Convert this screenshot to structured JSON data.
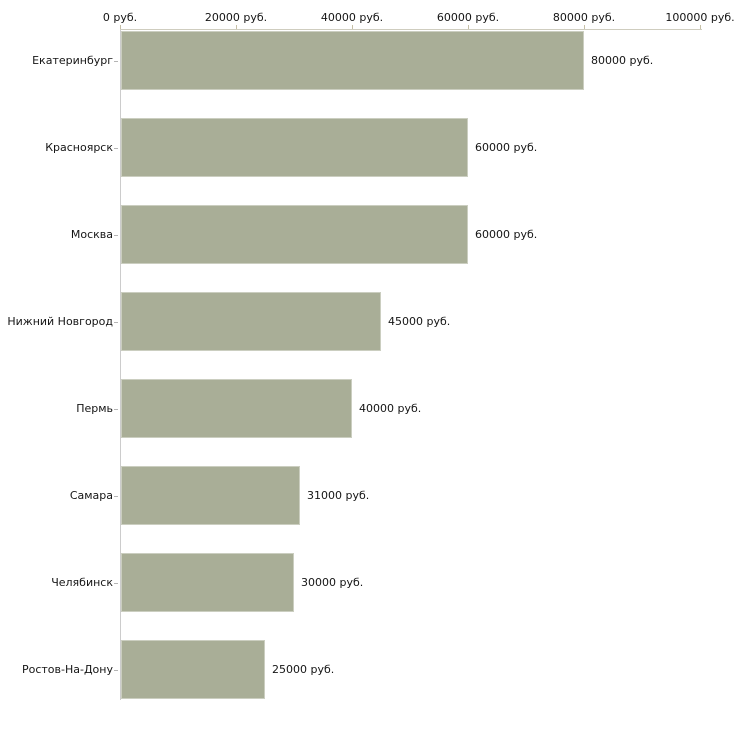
{
  "chart_data": {
    "type": "bar",
    "orientation": "horizontal",
    "title": "",
    "xlabel": "",
    "ylabel": "",
    "legend": "none",
    "grid": "off",
    "categories": [
      "Екатеринбург",
      "Красноярск",
      "Москва",
      "Нижний Новгород",
      "Пермь",
      "Самара",
      "Челябинск",
      "Ростов-На-Дону"
    ],
    "values": [
      80000,
      60000,
      60000,
      45000,
      40000,
      31000,
      30000,
      25000
    ],
    "value_labels": [
      "80000 руб.",
      "60000 руб.",
      "60000 руб.",
      "45000 руб.",
      "40000 руб.",
      "31000 руб.",
      "30000 руб.",
      "25000 руб."
    ],
    "x_ticks": [
      0,
      20000,
      40000,
      60000,
      80000,
      100000
    ],
    "x_tick_labels": [
      "0 руб.",
      "20000 руб.",
      "40000 руб.",
      "60000 руб.",
      "80000 руб.",
      "100000 руб."
    ],
    "xlim": [
      0,
      100000
    ],
    "unit": "руб.",
    "colors": {
      "bar_fill": "#a9ae97",
      "axis_line_horizontal": "#cfcdbf",
      "axis_line_vertical": "#cccccc",
      "tick_mark": "#c6c0a6",
      "text": "#151515",
      "background": "#ffffff"
    }
  }
}
